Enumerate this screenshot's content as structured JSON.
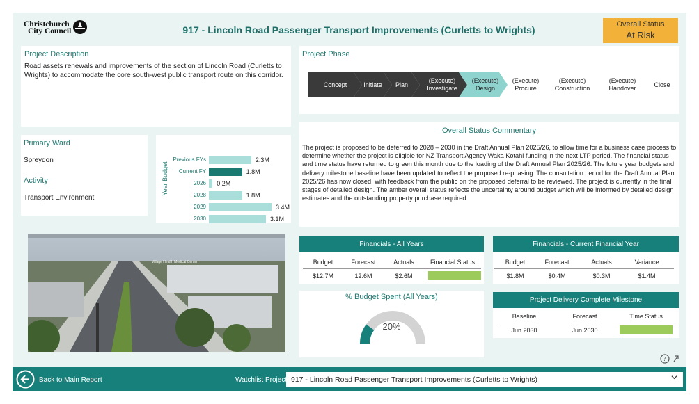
{
  "header": {
    "logo_line1": "Christchurch",
    "logo_line2": "City Council",
    "title": "917 - Lincoln Road Passenger Transport Improvements (Curletts to Wrights)",
    "status_label": "Overall Status",
    "status_value": "At Risk",
    "status_color": "#f2b23a"
  },
  "description": {
    "title": "Project Description",
    "text": "Road assets renewals and improvements of the section of Lincoln Road (Curletts to Wrights) to accommodate the core south-west public transport route on this corridor."
  },
  "phase": {
    "title": "Project Phase",
    "steps": [
      {
        "label": "Concept",
        "state": "done"
      },
      {
        "label": "Initiate",
        "state": "done"
      },
      {
        "label": "Plan",
        "state": "done"
      },
      {
        "label": "(Execute)\nInvestigate",
        "state": "done"
      },
      {
        "label": "(Execute)\nDesign",
        "state": "current"
      },
      {
        "label": "(Execute)\nProcure",
        "state": "future"
      },
      {
        "label": "(Execute)\nConstruction",
        "state": "future"
      },
      {
        "label": "(Execute)\nHandover",
        "state": "future"
      },
      {
        "label": "Close",
        "state": "future"
      }
    ]
  },
  "ward": {
    "title": "Primary Ward",
    "value": "Spreydon",
    "activity_title": "Activity",
    "activity_value": "Transport Environment"
  },
  "budget_chart": {
    "ylabel": "Year Budget",
    "items": [
      {
        "label": "Previous FYs",
        "value": 2.3,
        "text": "2.3M",
        "current": false
      },
      {
        "label": "Current FY",
        "value": 1.8,
        "text": "1.8M",
        "current": true
      },
      {
        "label": "2026",
        "value": 0.2,
        "text": "0.2M",
        "current": false
      },
      {
        "label": "2028",
        "value": 1.8,
        "text": "1.8M",
        "current": false
      },
      {
        "label": "2029",
        "value": 3.4,
        "text": "3.4M",
        "current": false
      },
      {
        "label": "2030",
        "value": 3.1,
        "text": "3.1M",
        "current": false
      }
    ],
    "max": 3.4
  },
  "commentary": {
    "title": "Overall Status Commentary",
    "text": "The project is proposed to be deferred to 2028 – 2030 in the Draft Annual Plan 2025/26, to allow time for a business case process to determine whether the project is eligible for NZ Transport Agency Waka Kotahi funding in the next LTP period. The financial status and time status have returned to green this month due to the loading of the Draft Annual Plan 2025/26. The future year budgets and delivery milestone baseline have been updated to reflect the proposed re-phasing. The consultation period for the Draft Annual Plan 2025/26 has now closed, with feedback from the public on the proposed deferral to be reviewed. The project is currently in the final stages of detailed design. The amber overall status reflects the uncertainty around budget which will be informed by detailed design estimates and the outstanding property purchase required."
  },
  "photo_sign": "Village Health Medical Center",
  "fin_all": {
    "title": "Financials - All Years",
    "headers": [
      "Budget",
      "Forecast",
      "Actuals",
      "Financial Status"
    ],
    "values": [
      "$12.7M",
      "12.6M",
      "$2.6M",
      ""
    ],
    "status_color": "#9ccb5c"
  },
  "fin_current": {
    "title": "Financials - Current Financial Year",
    "headers": [
      "Budget",
      "Forecast",
      "Actuals",
      "Variance"
    ],
    "values": [
      "$1.8M",
      "$0.4M",
      "$0.3M",
      "$1.4M"
    ]
  },
  "budget_spent": {
    "title": "% Budget Spent (All Years)",
    "percent": 20,
    "text": "20%"
  },
  "milestone": {
    "title": "Project Delivery Complete Milestone",
    "headers": [
      "Baseline",
      "Forecast",
      "Time Status"
    ],
    "values": [
      "Jun 2030",
      "Jun 2030",
      ""
    ],
    "status_color": "#9ccb5c"
  },
  "footer": {
    "back_label": "Back to Main Report",
    "watchlist_label": "Watchlist Project:",
    "watchlist_value": "917 - Lincoln Road Passenger Transport Improvements (Curletts to Wrights)"
  }
}
